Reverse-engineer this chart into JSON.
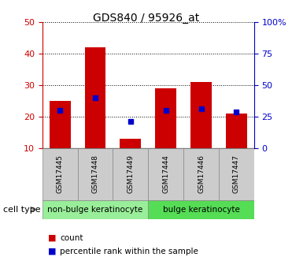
{
  "title": "GDS840 / 95926_at",
  "samples": [
    "GSM17445",
    "GSM17448",
    "GSM17449",
    "GSM17444",
    "GSM17446",
    "GSM17447"
  ],
  "counts": [
    25,
    42,
    13,
    29,
    31,
    21
  ],
  "percentile_values": [
    22,
    26,
    18.5,
    22,
    22.5,
    21.5
  ],
  "ylim_left": [
    10,
    50
  ],
  "ylim_right": [
    0,
    100
  ],
  "yticks_left": [
    10,
    20,
    30,
    40,
    50
  ],
  "yticks_right": [
    0,
    25,
    50,
    75,
    100
  ],
  "yticklabels_right": [
    "0",
    "25",
    "50",
    "75",
    "100%"
  ],
  "bar_color": "#cc0000",
  "dot_color": "#0000cc",
  "bar_bottom": 10,
  "groups": [
    {
      "label": "non-bulge keratinocyte",
      "indices": [
        0,
        1,
        2
      ],
      "color": "#99ee99"
    },
    {
      "label": "bulge keratinocyte",
      "indices": [
        3,
        4,
        5
      ],
      "color": "#55dd55"
    }
  ],
  "legend_items": [
    {
      "label": "count",
      "color": "#cc0000"
    },
    {
      "label": "percentile rank within the sample",
      "color": "#0000cc"
    }
  ],
  "left_tick_color": "#cc0000",
  "right_tick_color": "#0000cc",
  "sample_box_color": "#cccccc",
  "title_fontsize": 10,
  "tick_fontsize": 8,
  "sample_fontsize": 6.5,
  "group_fontsize": 7.5,
  "legend_fontsize": 7.5
}
